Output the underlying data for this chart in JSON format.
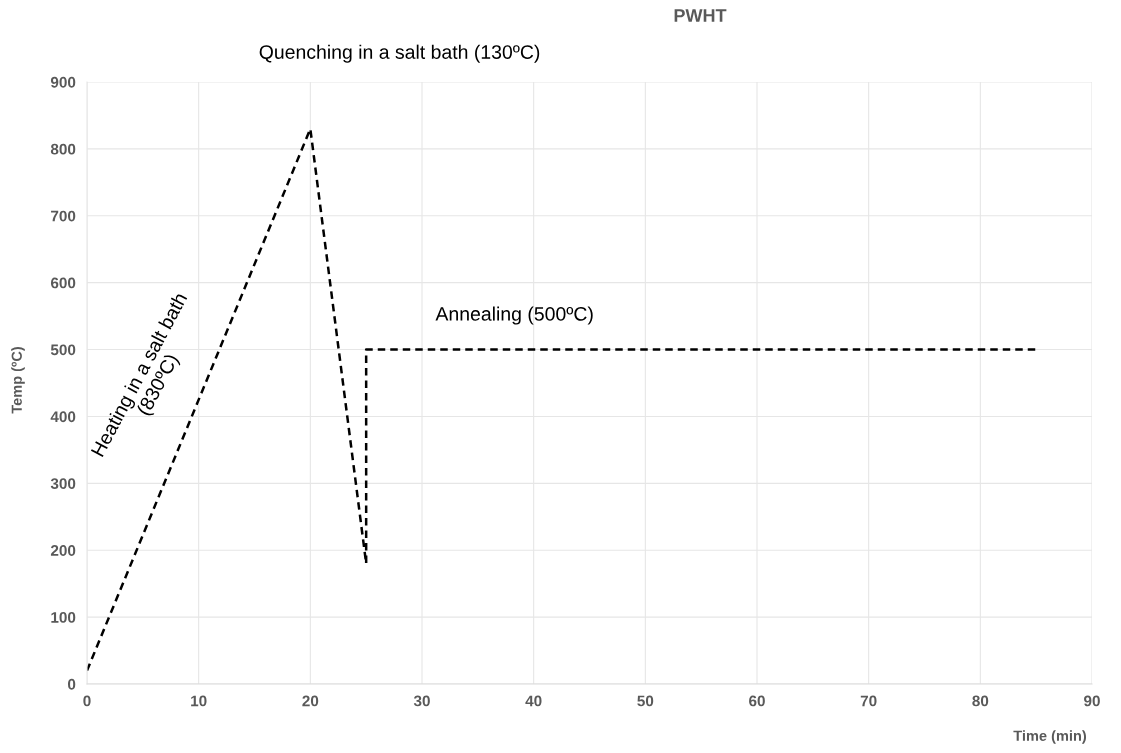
{
  "chart_data": {
    "type": "line",
    "title": "PWHT",
    "xlabel": "Time (min)",
    "ylabel": "Temp (ºC)",
    "x": [
      0,
      20,
      25,
      25,
      85
    ],
    "series": [
      {
        "color": "#000000",
        "values": [
          20,
          830,
          180,
          500,
          500
        ]
      }
    ],
    "line_style": "dashed",
    "marker": "none",
    "grid": true,
    "xlim": [
      0,
      90
    ],
    "xticks": [
      0,
      10,
      20,
      30,
      40,
      50,
      60,
      70,
      80,
      90
    ],
    "ylim": [
      0,
      900
    ],
    "yticks": [
      0,
      100,
      200,
      300,
      400,
      500,
      600,
      700,
      800,
      900
    ],
    "annotations": [
      "Quenching in a salt bath (130ºC)",
      {
        "text": "Heating in a salt bath\n(830ºC)",
        "x": 10,
        "y": 415
      },
      {
        "text": "Annealing (500ºC)",
        "x": 40,
        "y": 500
      }
    ]
  }
}
